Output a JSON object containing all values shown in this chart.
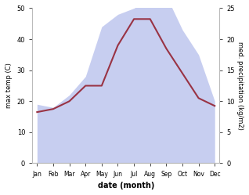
{
  "months": [
    "Jan",
    "Feb",
    "Mar",
    "Apr",
    "May",
    "Jun",
    "Jul",
    "Aug",
    "Sep",
    "Oct",
    "Nov",
    "Dec"
  ],
  "temp_line": [
    16.5,
    17.5,
    20.0,
    25.0,
    25.0,
    38.0,
    46.5,
    46.5,
    37.0,
    29.0,
    21.0,
    18.5
  ],
  "precip_mm": [
    9.5,
    9.0,
    11.0,
    14.0,
    22.0,
    24.0,
    25.0,
    26.5,
    27.0,
    21.5,
    17.5,
    10.0
  ],
  "temp_color": "#993344",
  "fill_color": "#aab4e8",
  "fill_alpha": 0.65,
  "ylabel_left": "max temp (C)",
  "ylabel_right": "med. precipitation (kg/m2)",
  "xlabel": "date (month)",
  "ylim_left": [
    0,
    50
  ],
  "ylim_right": [
    0,
    25
  ],
  "yticks_left": [
    0,
    10,
    20,
    30,
    40,
    50
  ],
  "yticks_right": [
    0,
    5,
    10,
    15,
    20,
    25
  ],
  "bg_color": "#ffffff",
  "spine_color": "#bbbbbb"
}
